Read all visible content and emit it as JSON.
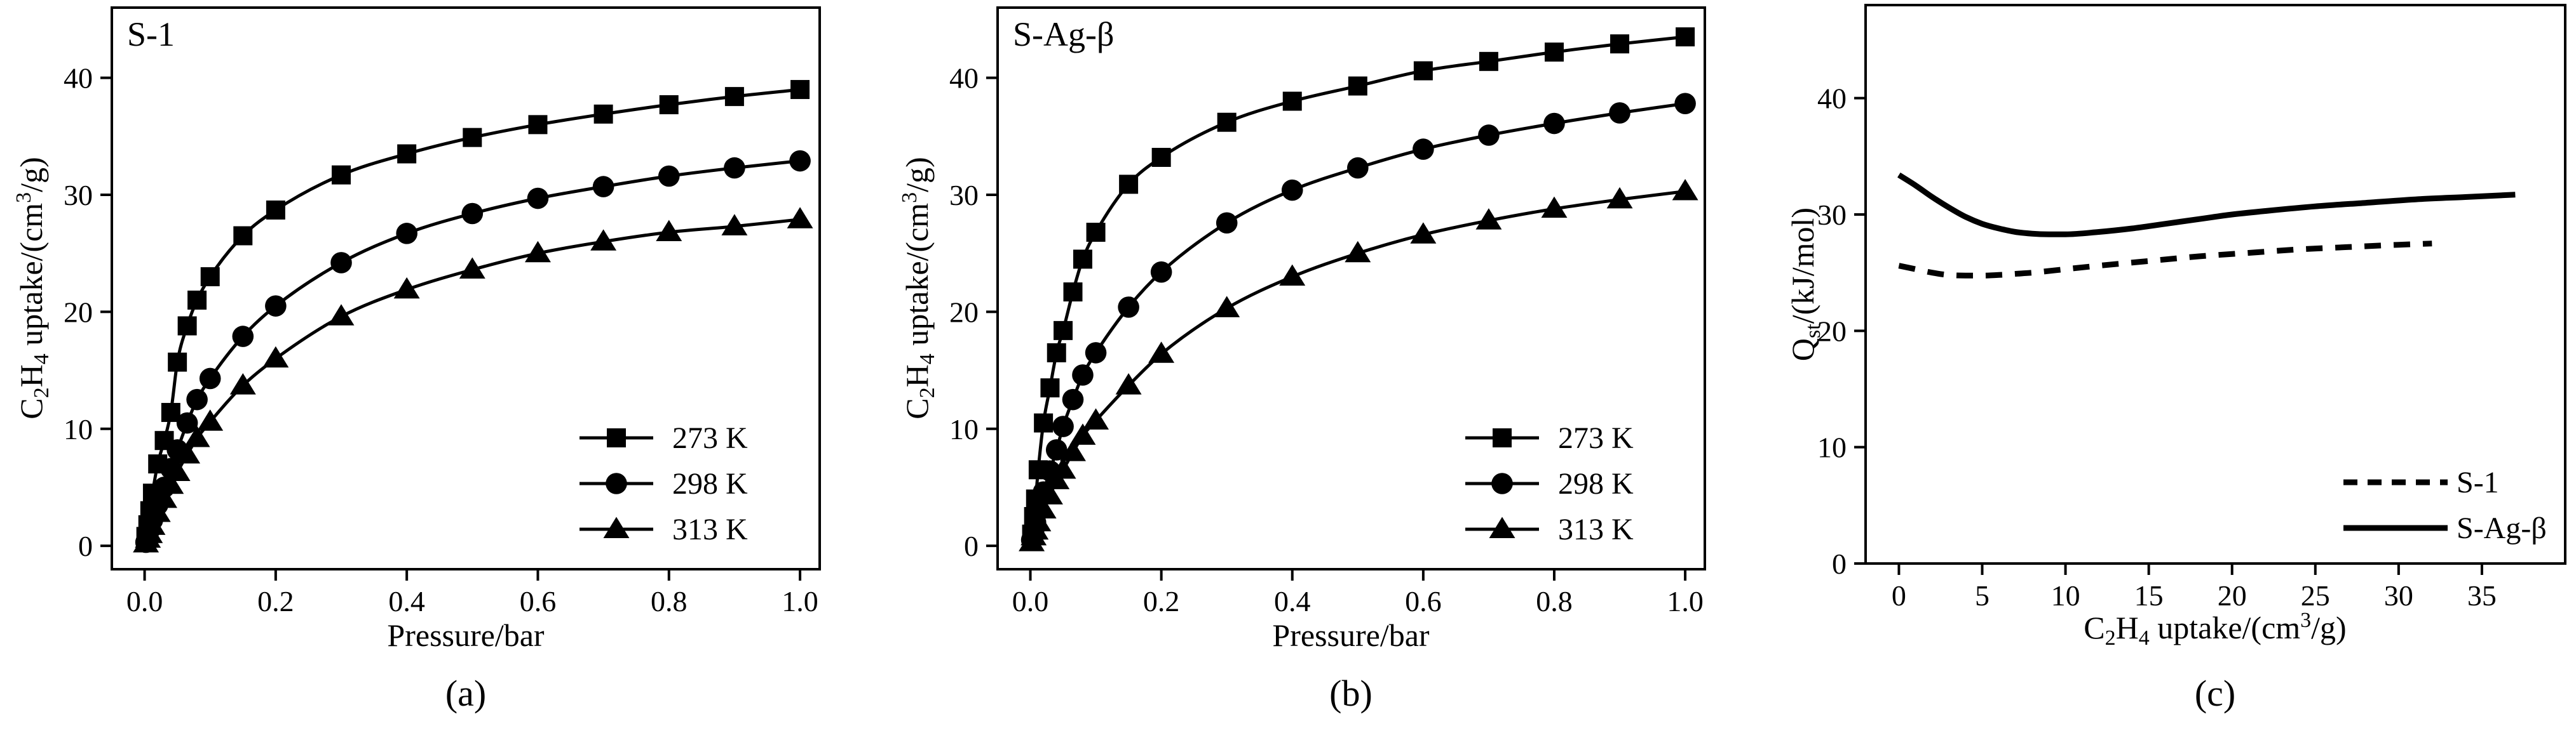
{
  "chart_data": [
    {
      "type": "line",
      "panel_label": "(a)",
      "tag": "S-1",
      "xlabel": "Pressure/bar",
      "ylabel": {
        "main": "C",
        "sub1": "2",
        "mid": "H",
        "sub2": "4",
        "tail": " uptake/(cm",
        "sup": "3",
        "end": "/g)"
      },
      "xlim": [
        -0.05,
        1.03
      ],
      "ylim": [
        -2,
        46
      ],
      "xticks": [
        0.0,
        0.2,
        0.4,
        0.6,
        0.8,
        1.0
      ],
      "xtick_labels": [
        "0.0",
        "0.2",
        "0.4",
        "0.6",
        "0.8",
        "1.0"
      ],
      "yticks": [
        0,
        10,
        20,
        30,
        40
      ],
      "ytick_labels": [
        "0",
        "10",
        "20",
        "30",
        "40"
      ],
      "grid": false,
      "legend_position": "bottom-right",
      "series": [
        {
          "name": "273 K",
          "marker": "square",
          "x": [
            0.002,
            0.005,
            0.008,
            0.012,
            0.02,
            0.03,
            0.04,
            0.05,
            0.065,
            0.08,
            0.1,
            0.15,
            0.2,
            0.3,
            0.4,
            0.5,
            0.6,
            0.7,
            0.8,
            0.9,
            1.0
          ],
          "y": [
            0.8,
            1.8,
            3.0,
            4.5,
            7.0,
            9.0,
            11.4,
            15.7,
            18.8,
            21.0,
            23.0,
            26.5,
            28.7,
            31.7,
            33.5,
            34.9,
            36.0,
            36.9,
            37.7,
            38.4,
            39.0
          ]
        },
        {
          "name": "298 K",
          "marker": "circle",
          "x": [
            0.002,
            0.005,
            0.008,
            0.012,
            0.02,
            0.03,
            0.04,
            0.05,
            0.065,
            0.08,
            0.1,
            0.15,
            0.2,
            0.3,
            0.4,
            0.5,
            0.6,
            0.7,
            0.8,
            0.9,
            1.0
          ],
          "y": [
            0.3,
            0.8,
            1.4,
            2.2,
            3.5,
            5.0,
            6.6,
            8.2,
            10.5,
            12.5,
            14.3,
            17.9,
            20.5,
            24.2,
            26.7,
            28.4,
            29.7,
            30.7,
            31.6,
            32.3,
            32.9
          ]
        },
        {
          "name": "313 K",
          "marker": "triangle",
          "x": [
            0.002,
            0.005,
            0.008,
            0.012,
            0.02,
            0.03,
            0.04,
            0.05,
            0.065,
            0.08,
            0.1,
            0.15,
            0.2,
            0.3,
            0.4,
            0.5,
            0.6,
            0.7,
            0.8,
            0.9,
            1.0
          ],
          "y": [
            0.2,
            0.6,
            1.0,
            1.7,
            2.8,
            4.0,
            5.2,
            6.3,
            7.8,
            9.2,
            10.6,
            13.7,
            16.0,
            19.6,
            21.9,
            23.6,
            25.0,
            26.0,
            26.8,
            27.3,
            27.9
          ]
        }
      ]
    },
    {
      "type": "line",
      "panel_label": "(b)",
      "tag": "S-Ag-β",
      "xlabel": "Pressure/bar",
      "ylabel": {
        "main": "C",
        "sub1": "2",
        "mid": "H",
        "sub2": "4",
        "tail": " uptake/(cm",
        "sup": "3",
        "end": "/g)"
      },
      "xlim": [
        -0.05,
        1.03
      ],
      "ylim": [
        -2,
        46
      ],
      "xticks": [
        0.0,
        0.2,
        0.4,
        0.6,
        0.8,
        1.0
      ],
      "xtick_labels": [
        "0.0",
        "0.2",
        "0.4",
        "0.6",
        "0.8",
        "1.0"
      ],
      "yticks": [
        0,
        10,
        20,
        30,
        40
      ],
      "ytick_labels": [
        "0",
        "10",
        "20",
        "30",
        "40"
      ],
      "grid": false,
      "legend_position": "bottom-right",
      "series": [
        {
          "name": "273 K",
          "marker": "square",
          "x": [
            0.002,
            0.005,
            0.008,
            0.012,
            0.02,
            0.03,
            0.04,
            0.05,
            0.065,
            0.08,
            0.1,
            0.15,
            0.2,
            0.3,
            0.4,
            0.5,
            0.6,
            0.7,
            0.8,
            0.9,
            1.0
          ],
          "y": [
            1.0,
            2.5,
            4.0,
            6.5,
            10.5,
            13.5,
            16.5,
            18.4,
            21.7,
            24.5,
            26.8,
            30.9,
            33.2,
            36.2,
            38.0,
            39.3,
            40.6,
            41.4,
            42.2,
            42.9,
            43.5
          ]
        },
        {
          "name": "298 K",
          "marker": "circle",
          "x": [
            0.002,
            0.005,
            0.008,
            0.012,
            0.02,
            0.03,
            0.04,
            0.05,
            0.065,
            0.08,
            0.1,
            0.15,
            0.2,
            0.3,
            0.4,
            0.5,
            0.6,
            0.7,
            0.8,
            0.9,
            1.0
          ],
          "y": [
            0.5,
            1.2,
            2.0,
            3.0,
            4.6,
            6.4,
            8.2,
            10.2,
            12.5,
            14.6,
            16.5,
            20.4,
            23.4,
            27.6,
            30.4,
            32.3,
            33.9,
            35.1,
            36.1,
            37.0,
            37.8
          ]
        },
        {
          "name": "313 K",
          "marker": "triangle",
          "x": [
            0.002,
            0.005,
            0.008,
            0.012,
            0.02,
            0.03,
            0.04,
            0.05,
            0.065,
            0.08,
            0.1,
            0.15,
            0.2,
            0.3,
            0.4,
            0.5,
            0.6,
            0.7,
            0.8,
            0.9,
            1.0
          ],
          "y": [
            0.3,
            0.8,
            1.3,
            2.0,
            3.1,
            4.3,
            5.6,
            6.5,
            8.0,
            9.4,
            10.7,
            13.7,
            16.4,
            20.3,
            23.0,
            25.0,
            26.6,
            27.8,
            28.8,
            29.6,
            30.3
          ]
        }
      ]
    },
    {
      "type": "line",
      "panel_label": "(c)",
      "xlabel": {
        "main": "C",
        "sub1": "2",
        "mid": "H",
        "sub2": "4",
        "tail": " uptake/(cm",
        "sup": "3",
        "end": "/g)"
      },
      "ylabel": {
        "main": "Q",
        "sub": "st",
        "tail": "/(kJ/mol)"
      },
      "xlim": [
        -2,
        40
      ],
      "ylim": [
        0,
        48
      ],
      "xticks": [
        0,
        5,
        10,
        15,
        20,
        25,
        30,
        35
      ],
      "xtick_labels": [
        "0",
        "5",
        "10",
        "15",
        "20",
        "25",
        "30",
        "35"
      ],
      "yticks": [
        0,
        10,
        20,
        30,
        40
      ],
      "ytick_labels": [
        "0",
        "10",
        "20",
        "30",
        "40"
      ],
      "grid": false,
      "legend_position": "bottom-right",
      "series": [
        {
          "name": "S-1",
          "style": "dashed",
          "x": [
            0,
            1,
            2,
            3,
            4,
            5,
            6,
            7,
            8,
            10,
            12,
            15,
            18,
            21,
            24,
            27,
            30,
            32
          ],
          "y": [
            25.6,
            25.3,
            25.0,
            24.8,
            24.75,
            24.75,
            24.8,
            24.9,
            25.0,
            25.3,
            25.6,
            26.0,
            26.4,
            26.7,
            27.0,
            27.2,
            27.4,
            27.5
          ]
        },
        {
          "name": "S-Ag-β",
          "style": "solid",
          "x": [
            0,
            1,
            2,
            3,
            4,
            5,
            6,
            7,
            8,
            9,
            10,
            12,
            14,
            16,
            18,
            20,
            22,
            25,
            28,
            31,
            34,
            37
          ],
          "y": [
            33.4,
            32.5,
            31.5,
            30.6,
            29.8,
            29.2,
            28.8,
            28.5,
            28.35,
            28.3,
            28.3,
            28.5,
            28.8,
            29.2,
            29.6,
            30.0,
            30.3,
            30.7,
            31.0,
            31.3,
            31.5,
            31.7
          ]
        }
      ]
    }
  ]
}
